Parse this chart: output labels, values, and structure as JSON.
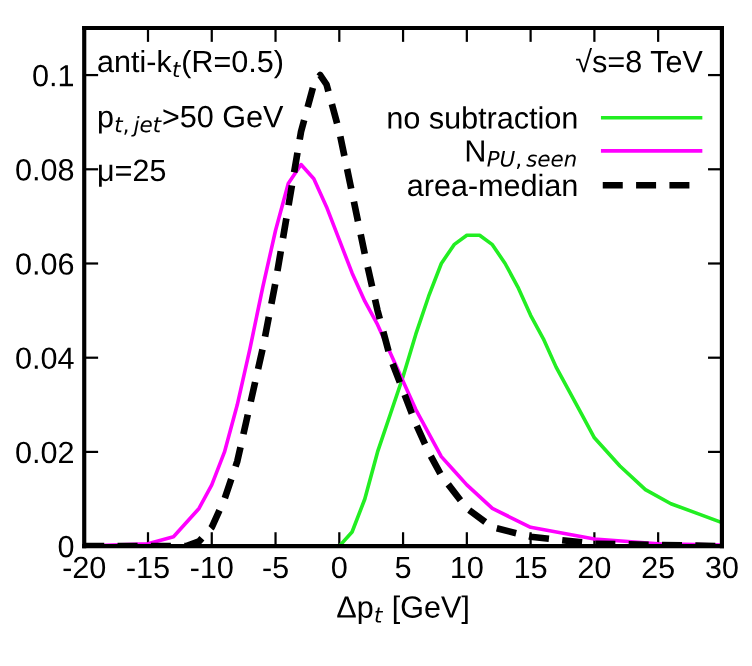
{
  "chart_data": {
    "type": "line",
    "xlabel": "Δp$_{t}$ [GeV]",
    "xlim": [
      -20,
      30
    ],
    "ylim": [
      0,
      0.11
    ],
    "xticks": [
      -20,
      -15,
      -10,
      -5,
      0,
      5,
      10,
      15,
      20,
      25,
      30
    ],
    "yticks": [
      0,
      0.02,
      0.04,
      0.06,
      0.08,
      0.1
    ],
    "grid": false,
    "legend": "top right",
    "marker": "none",
    "annotations": [
      "anti-k$_{t}$(R=0.5)",
      "p$_{t,jet}$>50 GeV",
      "μ=25",
      "√s=8 TeV"
    ],
    "series": [
      {
        "name": "no subtraction",
        "color": "#22ee22",
        "line_style": "solid",
        "x": [
          0,
          1,
          2,
          3,
          4,
          5,
          6,
          7,
          8,
          9,
          10,
          11,
          12,
          13,
          14,
          15,
          16,
          17,
          18,
          19,
          20,
          22,
          24,
          26,
          28,
          30
        ],
        "values": [
          0,
          0.003,
          0.01,
          0.02,
          0.028,
          0.036,
          0.045,
          0.053,
          0.06,
          0.064,
          0.066,
          0.066,
          0.064,
          0.06,
          0.055,
          0.049,
          0.044,
          0.038,
          0.033,
          0.028,
          0.023,
          0.017,
          0.012,
          0.009,
          0.007,
          0.005
        ]
      },
      {
        "name": "N$_{PU,seen}$",
        "color": "#ff00ff",
        "line_style": "solid",
        "x": [
          -20,
          -15,
          -13,
          -11,
          -10,
          -9,
          -8,
          -7,
          -6,
          -5,
          -4,
          -3,
          -2,
          -1,
          0,
          1,
          2,
          3,
          4,
          5,
          6,
          7,
          8,
          9,
          10,
          12,
          15,
          20,
          25,
          30
        ],
        "values": [
          0,
          0.0005,
          0.002,
          0.008,
          0.013,
          0.02,
          0.03,
          0.042,
          0.055,
          0.067,
          0.077,
          0.081,
          0.078,
          0.072,
          0.065,
          0.058,
          0.052,
          0.047,
          0.041,
          0.035,
          0.029,
          0.024,
          0.019,
          0.016,
          0.013,
          0.008,
          0.004,
          0.0015,
          0.0005,
          0.0002
        ]
      },
      {
        "name": "area-median",
        "color": "#000000",
        "line_style": "dashed",
        "x": [
          -20,
          -12,
          -11,
          -10,
          -9,
          -8,
          -7,
          -6,
          -5,
          -4,
          -3,
          -2,
          -1.5,
          -1,
          0,
          1,
          2,
          3,
          4,
          5,
          6,
          7,
          8,
          10,
          12,
          15,
          20,
          30
        ],
        "values": [
          0,
          0,
          0.001,
          0.004,
          0.01,
          0.018,
          0.03,
          0.042,
          0.056,
          0.072,
          0.088,
          0.098,
          0.1,
          0.098,
          0.088,
          0.075,
          0.062,
          0.05,
          0.04,
          0.033,
          0.026,
          0.02,
          0.015,
          0.008,
          0.004,
          0.002,
          0.0005,
          0
        ]
      }
    ]
  }
}
